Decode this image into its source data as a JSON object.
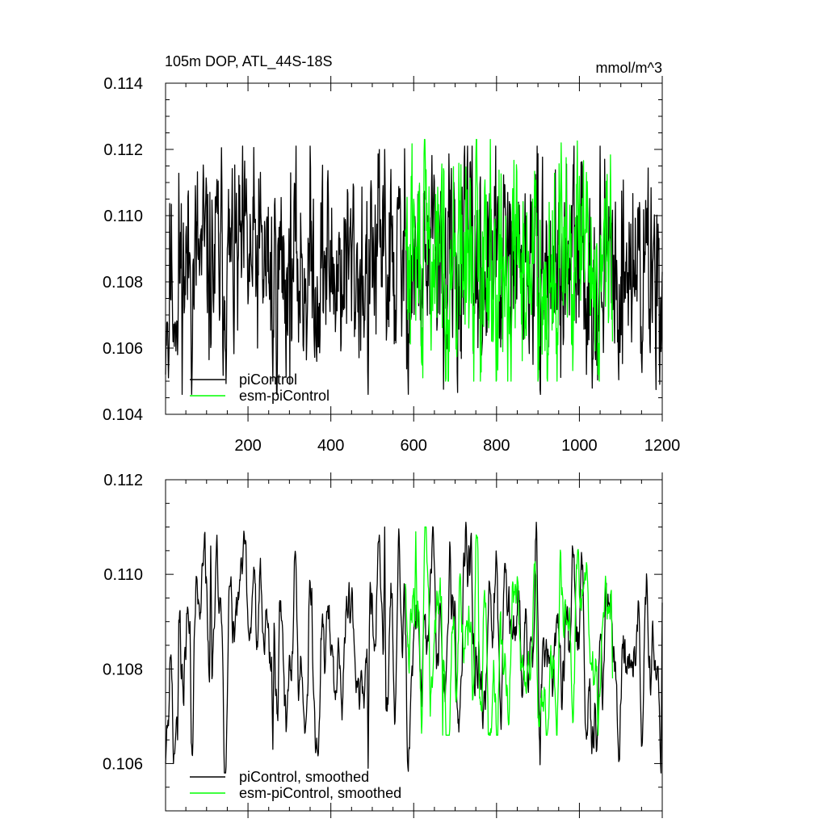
{
  "chart_data": [
    {
      "type": "line",
      "title": "105m DOP, ATL_44S-18S",
      "units": "mmol/m^3",
      "xlim": [
        1,
        1200
      ],
      "ylim": [
        0.104,
        0.114
      ],
      "x_ticks": [
        200,
        400,
        600,
        800,
        1000,
        1200
      ],
      "y_ticks": [
        "0.104",
        "0.106",
        "0.108",
        "0.110",
        "0.112",
        "0.114"
      ],
      "legend_position": "bottom-left",
      "series": [
        {
          "name": "piControl",
          "color": "#000000",
          "x_start": 1,
          "x_end": 1200,
          "mean": 0.1085,
          "amplitude": 0.0016,
          "min": 0.1046,
          "max": 0.1121,
          "seed": 11,
          "smooth": 0,
          "anchors": [
            [
              1,
              0.1052
            ],
            [
              8,
              0.1051
            ],
            [
              20,
              0.1062
            ],
            [
              30,
              0.1058
            ],
            [
              60,
              0.1088
            ],
            [
              150,
              0.109
            ],
            [
              260,
              0.105
            ],
            [
              490,
              0.1046
            ],
            [
              530,
              0.112
            ],
            [
              1200,
              0.1083
            ]
          ]
        },
        {
          "name": "esm-piControl",
          "color": "#00ff00",
          "x_start": 580,
          "x_end": 1080,
          "mean": 0.1085,
          "amplitude": 0.0017,
          "min": 0.105,
          "max": 0.1123,
          "seed": 29,
          "smooth": 0,
          "anchors": [
            [
              580,
              0.1095
            ],
            [
              600,
              0.1105
            ],
            [
              785,
              0.1123
            ],
            [
              835,
              0.105
            ],
            [
              1045,
              0.1052
            ],
            [
              1080,
              0.1062
            ]
          ]
        }
      ]
    },
    {
      "type": "line",
      "xlim": [
        1,
        1200
      ],
      "ylim": [
        0.105,
        0.112
      ],
      "y_ticks": [
        "0.106",
        "0.108",
        "0.110",
        "0.112"
      ],
      "legend_position": "bottom-left",
      "series": [
        {
          "name": "piControl, smoothed",
          "color": "#000000",
          "x_start": 1,
          "x_end": 1200,
          "mean": 0.1085,
          "amplitude": 0.0011,
          "min": 0.1058,
          "max": 0.1111,
          "seed": 11,
          "smooth": 4,
          "anchors": [
            [
              1,
              0.106
            ],
            [
              8,
              0.1068
            ],
            [
              20,
              0.106
            ],
            [
              30,
              0.1065
            ],
            [
              60,
              0.109
            ],
            [
              110,
              0.1106
            ],
            [
              260,
              0.1063
            ],
            [
              490,
              0.1059
            ],
            [
              530,
              0.111
            ],
            [
              1200,
              0.1094
            ]
          ]
        },
        {
          "name": "esm-piControl, smoothed",
          "color": "#00ff00",
          "x_start": 580,
          "x_end": 1080,
          "mean": 0.1085,
          "amplitude": 0.0011,
          "min": 0.1066,
          "max": 0.111,
          "seed": 29,
          "smooth": 4,
          "anchors": [
            [
              580,
              0.1098
            ],
            [
              600,
              0.1097
            ],
            [
              605,
              0.1109
            ],
            [
              640,
              0.107
            ],
            [
              670,
              0.1066
            ],
            [
              1045,
              0.1066
            ],
            [
              1080,
              0.1078
            ]
          ]
        }
      ]
    }
  ]
}
